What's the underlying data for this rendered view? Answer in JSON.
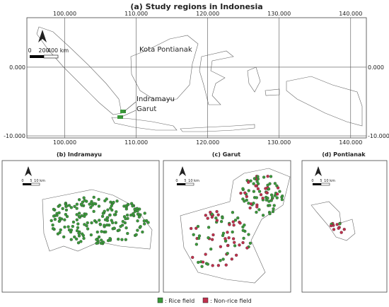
{
  "map_a": {
    "title": "(a) Study regions in Indonesia",
    "xlim": [
      94.7,
      142.2
    ],
    "ylim": [
      -10.3,
      7.2
    ],
    "xticks": [
      {
        "value": 100,
        "label": "100.000"
      },
      {
        "value": 110,
        "label": "110.000"
      },
      {
        "value": 120,
        "label": "120.000"
      },
      {
        "value": 130,
        "label": "130.000"
      },
      {
        "value": 140,
        "label": "140.000"
      }
    ],
    "yticks": [
      {
        "value": 0,
        "label": "0.000"
      },
      {
        "value": -10,
        "label": "-10.000"
      }
    ],
    "labels": [
      "Kota Pontianak",
      "Indramayu",
      "Garut"
    ],
    "scale_labels": [
      "0",
      "200",
      "400 km"
    ]
  },
  "panels": [
    {
      "title": "(b) Indramayu",
      "scale_labels": [
        "0",
        "5",
        "10 km"
      ]
    },
    {
      "title": "(c) Garut",
      "scale_labels": [
        "0",
        "5",
        "10 km"
      ]
    },
    {
      "title": "(d) Pontianak",
      "scale_labels": [
        "0",
        "5",
        "10 km"
      ]
    }
  ],
  "legend": [
    ": Rice field",
    ": Non-rice field"
  ]
}
